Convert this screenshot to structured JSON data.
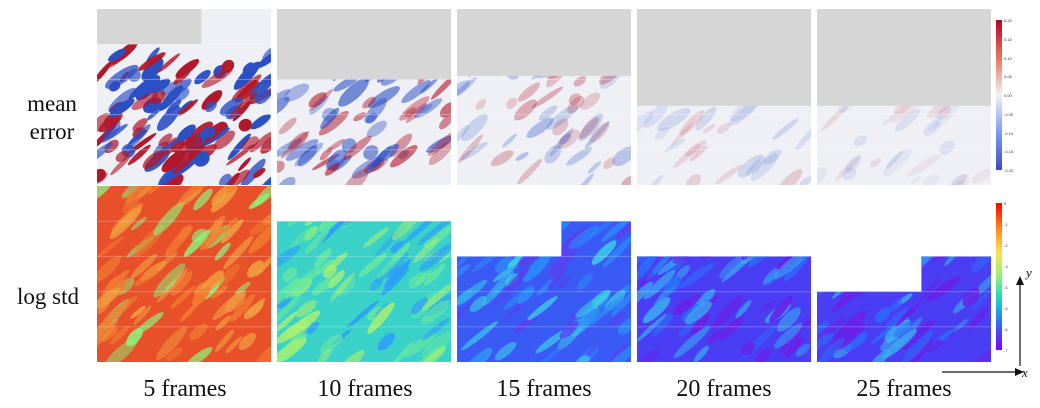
{
  "figure": {
    "row_labels": {
      "mean_error_line1": "mean",
      "mean_error_line2": "error",
      "log_std": "log std"
    },
    "columns": [
      {
        "label": "5 frames"
      },
      {
        "label": "10 frames"
      },
      {
        "label": "15 frames"
      },
      {
        "label": "20 frames"
      },
      {
        "label": "25 frames"
      }
    ],
    "colorbar_mean_error": {
      "colormap": "coolwarm",
      "ticks": [
        "0.20",
        "0.15",
        "0.10",
        "0.05",
        "0.00",
        "-0.05",
        "-0.10",
        "-0.15",
        "-0.20"
      ]
    },
    "colorbar_log_std": {
      "colormap": "rainbow",
      "ticks": [
        "0",
        "-1",
        "-2",
        "-3",
        "-4",
        "-5",
        "-6",
        "-7"
      ]
    },
    "axes": {
      "x": "x",
      "y": "y"
    },
    "colors": {
      "missing": "#d6d6d6",
      "error_red": "#b2182b",
      "error_blue": "#2c4fc4",
      "std_high": "#e8502a",
      "std_low": "#6a20e8"
    }
  }
}
